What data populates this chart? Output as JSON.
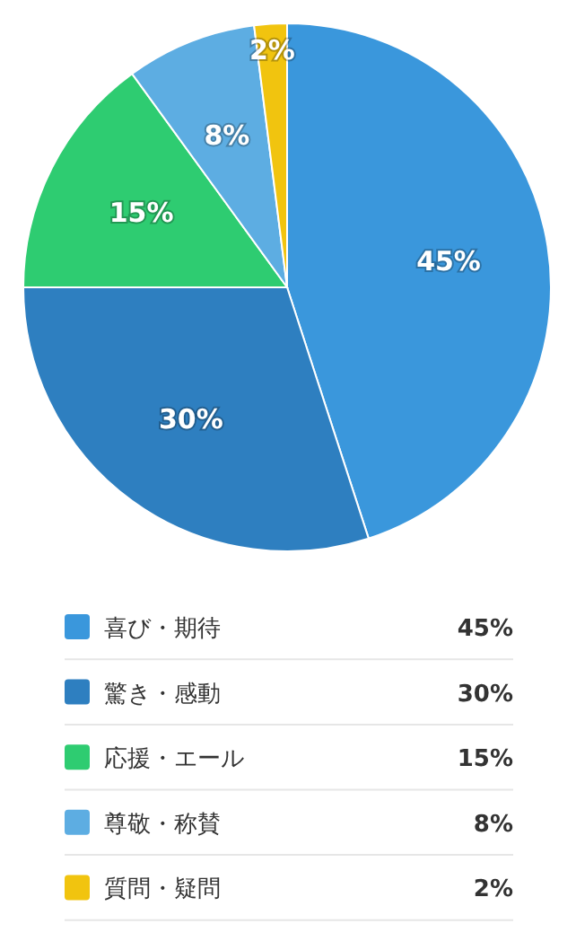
{
  "chart_data": {
    "type": "pie",
    "categories": [
      "喜び・期待",
      "驚き・感動",
      "応援・エール",
      "尊敬・称賛",
      "質問・疑問"
    ],
    "values": [
      45,
      30,
      15,
      8,
      2
    ],
    "colors": [
      "#3a97dc",
      "#2e7fc0",
      "#2ecc71",
      "#5dade2",
      "#f1c40f"
    ],
    "value_labels": [
      "45%",
      "30%",
      "15%",
      "8%",
      "2%"
    ],
    "legend": "bottom"
  }
}
